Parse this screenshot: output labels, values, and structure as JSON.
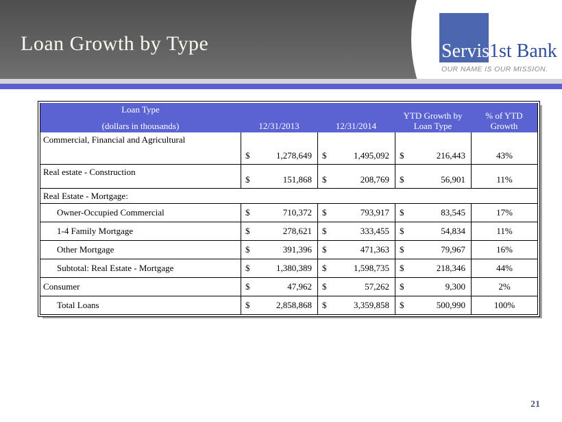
{
  "slide": {
    "title": "Loan Growth by Type",
    "page_number": "21"
  },
  "logo": {
    "name_part1": "Servis",
    "name_part2": "1st Bank",
    "tagline": "OUR NAME IS OUR MISSION."
  },
  "colors": {
    "table_header_blue": "#5b63d3",
    "accent_stripe_blue": "#5a60ce",
    "divider_gray": "#d6d6d9",
    "logo_square_blue": "#4d67ae",
    "logo_text_blue": "#2e4d9e",
    "title_band_gradient_top": "#4f4f4f",
    "title_band_gradient_bottom": "#707070",
    "page_number_color": "#4e5a6e"
  },
  "table": {
    "currency_symbol": "$",
    "header": {
      "col1_line1": "Loan Type",
      "col1_line2": "(dollars in thousands)",
      "col2": "12/31/2013",
      "col3": "12/31/2014",
      "col4_line1": "YTD Growth by",
      "col4_line2": "Loan Type",
      "col5_line1": "% of YTD",
      "col5_line2": "Growth"
    },
    "rows": [
      {
        "label": "Commercial, Financial and Agricultural",
        "v2013": "1,278,649",
        "v2014": "1,495,092",
        "growth": "216,443",
        "pct": "43%"
      },
      {
        "label": "Real estate - Construction",
        "v2013": "151,868",
        "v2014": "208,769",
        "growth": "56,901",
        "pct": "11%"
      },
      {
        "label": "Real Estate - Mortgage:"
      },
      {
        "label": "Owner-Occupied Commercial",
        "v2013": "710,372",
        "v2014": "793,917",
        "growth": "83,545",
        "pct": "17%"
      },
      {
        "label": "1-4 Family Mortgage",
        "v2013": "278,621",
        "v2014": "333,455",
        "growth": "54,834",
        "pct": "11%"
      },
      {
        "label": "Other Mortgage",
        "v2013": "391,396",
        "v2014": "471,363",
        "growth": "79,967",
        "pct": "16%"
      },
      {
        "label": "Subtotal: Real Estate - Mortgage",
        "v2013": "1,380,389",
        "v2014": "1,598,735",
        "growth": "218,346",
        "pct": "44%"
      },
      {
        "label": "Consumer",
        "v2013": "47,962",
        "v2014": "57,262",
        "growth": "9,300",
        "pct": "2%"
      },
      {
        "label": "Total Loans",
        "v2013": "2,858,868",
        "v2014": "3,359,858",
        "growth": "500,990",
        "pct": "100%"
      }
    ]
  }
}
